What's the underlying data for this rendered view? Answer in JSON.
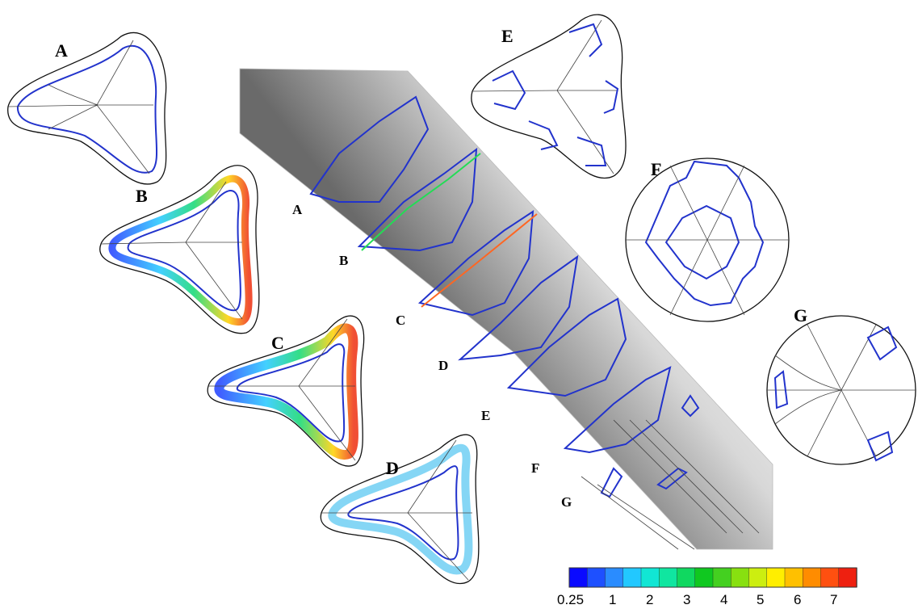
{
  "sections": [
    {
      "id": "A",
      "label": "A",
      "shape": "triangle"
    },
    {
      "id": "B",
      "label": "B",
      "shape": "triangle"
    },
    {
      "id": "C",
      "label": "C",
      "shape": "triangle"
    },
    {
      "id": "D",
      "label": "D",
      "shape": "triangle"
    },
    {
      "id": "E",
      "label": "E",
      "shape": "triangle"
    },
    {
      "id": "F",
      "label": "F",
      "shape": "circle"
    },
    {
      "id": "G",
      "label": "G",
      "shape": "circle"
    }
  ],
  "pipe_labels": [
    "A",
    "B",
    "C",
    "D",
    "E",
    "F",
    "G"
  ],
  "colorbar": {
    "ticks": [
      "0.25",
      "1",
      "2",
      "3",
      "4",
      "5",
      "6",
      "7"
    ],
    "colors": [
      "#0a0aff",
      "#1e50ff",
      "#2a8cff",
      "#22c8ff",
      "#11e6d4",
      "#10e6a0",
      "#10d860",
      "#10c820",
      "#44d020",
      "#88e010",
      "#ccee10",
      "#ffee00",
      "#ffc000",
      "#ff8c00",
      "#ff5010",
      "#ee2010"
    ]
  },
  "colors": {
    "vortex": "#2233cc",
    "streamline": "#444444",
    "pipe_light": "#f2f2f2",
    "pipe_dark": "#9a9a9a"
  }
}
